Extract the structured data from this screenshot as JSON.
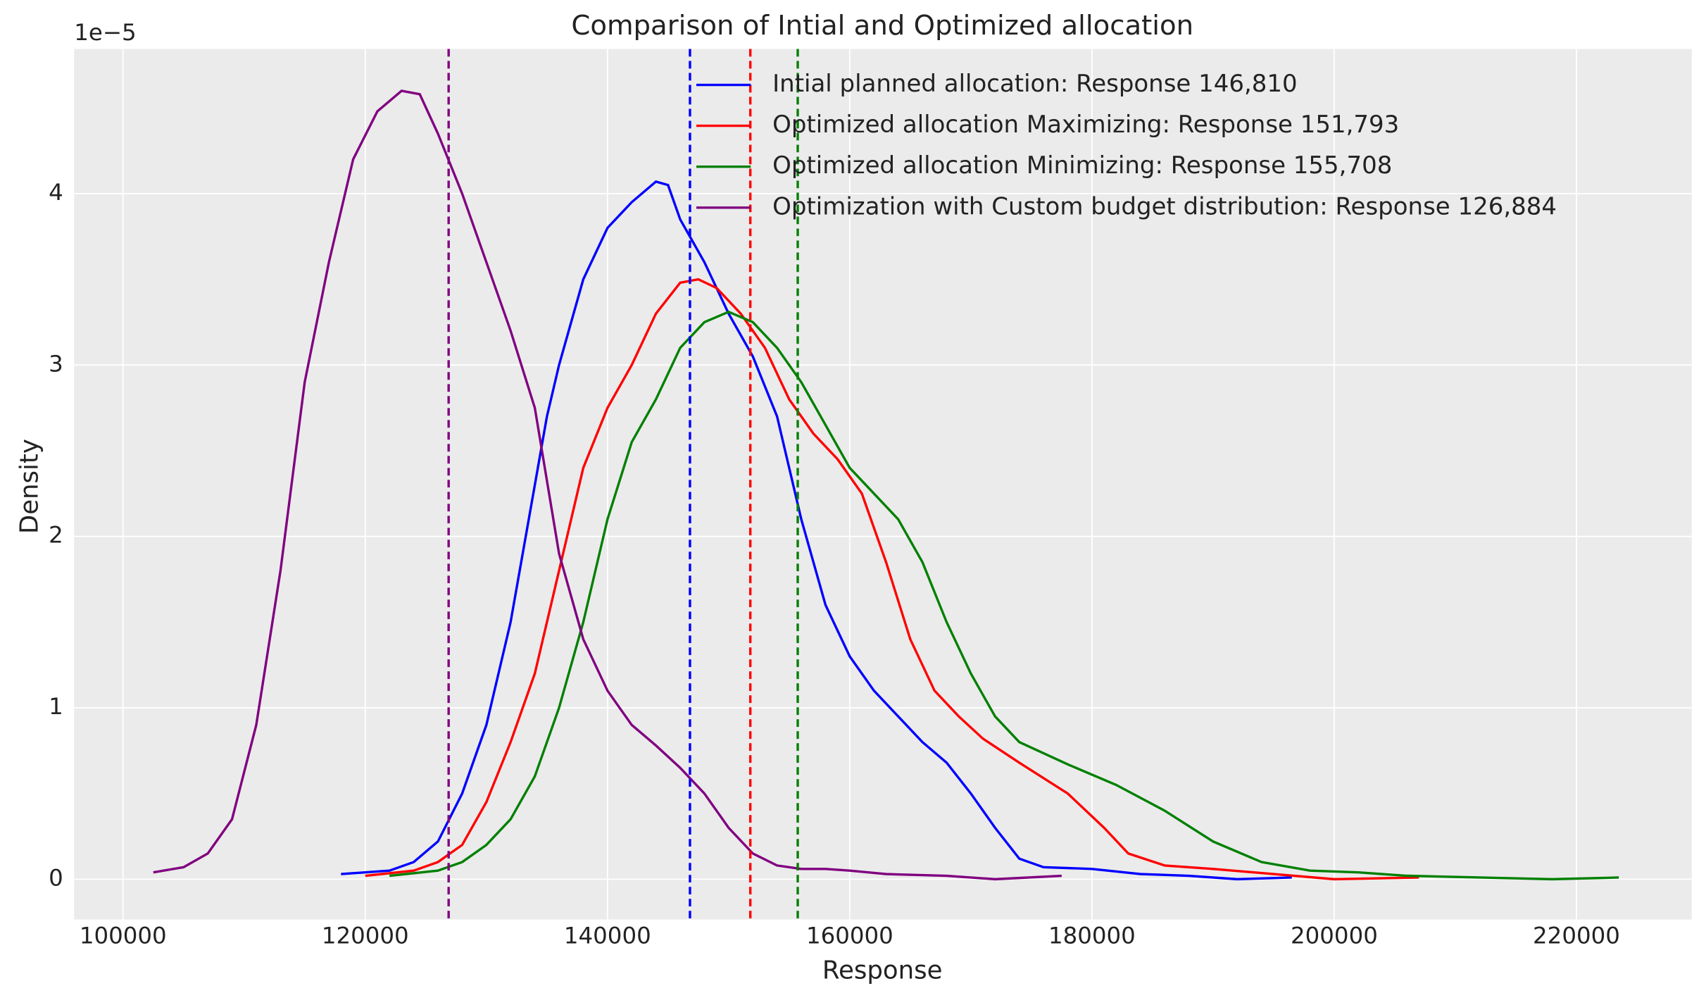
{
  "chart_data": {
    "type": "line",
    "title": "Comparison of Intial and Optimized allocation",
    "x_label": "Response",
    "y_label": "Density",
    "y_offset_label": "1e−5",
    "xlim": [
      95960,
      229520
    ],
    "ylim": [
      -0.235,
      4.844
    ],
    "xticks": [
      100000,
      120000,
      140000,
      160000,
      180000,
      200000,
      220000
    ],
    "yticks": [
      0,
      1,
      2,
      3,
      4
    ],
    "grid": true,
    "legend": "upper right",
    "series": [
      {
        "name": "Intial planned allocation: Response 146,810",
        "color": "#0000ff",
        "mean": 146810,
        "x": [
          118000,
          122000,
          124000,
          126000,
          128000,
          130000,
          132000,
          134000,
          135000,
          136000,
          138000,
          140000,
          142000,
          144000,
          145000,
          146000,
          148000,
          150000,
          152000,
          154000,
          156000,
          158000,
          160000,
          162000,
          164000,
          166000,
          168000,
          170000,
          172000,
          174000,
          176000,
          180000,
          184000,
          188000,
          192000,
          196500
        ],
        "values": [
          0.03,
          0.05,
          0.1,
          0.22,
          0.5,
          0.9,
          1.5,
          2.3,
          2.7,
          3.0,
          3.5,
          3.8,
          3.95,
          4.07,
          4.05,
          3.85,
          3.6,
          3.3,
          3.05,
          2.7,
          2.1,
          1.6,
          1.3,
          1.1,
          0.95,
          0.8,
          0.68,
          0.5,
          0.3,
          0.12,
          0.07,
          0.06,
          0.03,
          0.02,
          0.0,
          0.01
        ]
      },
      {
        "name": "Optimized allocation Maximizing: Response 151,793",
        "color": "#ff0000",
        "mean": 151793,
        "x": [
          120000,
          124000,
          126000,
          128000,
          130000,
          132000,
          134000,
          136000,
          138000,
          140000,
          142000,
          144000,
          146000,
          147500,
          149000,
          151000,
          153000,
          155000,
          157000,
          159000,
          161000,
          163000,
          165000,
          167000,
          169000,
          171000,
          174000,
          178000,
          181000,
          183000,
          186000,
          190000,
          195000,
          200000,
          207000
        ],
        "values": [
          0.02,
          0.05,
          0.1,
          0.2,
          0.45,
          0.8,
          1.2,
          1.8,
          2.4,
          2.75,
          3.0,
          3.3,
          3.48,
          3.5,
          3.45,
          3.3,
          3.1,
          2.8,
          2.6,
          2.45,
          2.25,
          1.85,
          1.4,
          1.1,
          0.95,
          0.82,
          0.68,
          0.5,
          0.3,
          0.15,
          0.08,
          0.06,
          0.03,
          0.0,
          0.01
        ]
      },
      {
        "name": "Optimized allocation Minimizing: Response 155,708",
        "color": "#008000",
        "mean": 155708,
        "x": [
          122000,
          126000,
          128000,
          130000,
          132000,
          134000,
          136000,
          138000,
          140000,
          142000,
          144000,
          146000,
          148000,
          150000,
          152000,
          154000,
          156000,
          158000,
          160000,
          162000,
          164000,
          166000,
          168000,
          170000,
          172000,
          174000,
          178000,
          182000,
          186000,
          190000,
          194000,
          198000,
          202000,
          206000,
          212000,
          218000,
          223500
        ],
        "values": [
          0.02,
          0.05,
          0.1,
          0.2,
          0.35,
          0.6,
          1.0,
          1.5,
          2.1,
          2.55,
          2.8,
          3.1,
          3.25,
          3.31,
          3.25,
          3.1,
          2.9,
          2.65,
          2.4,
          2.25,
          2.1,
          1.85,
          1.5,
          1.2,
          0.95,
          0.8,
          0.67,
          0.55,
          0.4,
          0.22,
          0.1,
          0.05,
          0.04,
          0.02,
          0.01,
          0.0,
          0.01
        ]
      },
      {
        "name": "Optimization with Custom budget distribution: Response 126,884",
        "color": "#800080",
        "mean": 126884,
        "x": [
          102500,
          105000,
          107000,
          109000,
          111000,
          113000,
          115000,
          117000,
          119000,
          121000,
          123000,
          124500,
          126000,
          128000,
          130000,
          132000,
          134000,
          136000,
          138000,
          140000,
          142000,
          144000,
          146000,
          148000,
          150000,
          152000,
          154000,
          156000,
          158000,
          160000,
          163000,
          168000,
          172000,
          177500
        ],
        "values": [
          0.04,
          0.07,
          0.15,
          0.35,
          0.9,
          1.8,
          2.9,
          3.6,
          4.2,
          4.48,
          4.6,
          4.58,
          4.35,
          4.0,
          3.6,
          3.2,
          2.75,
          1.9,
          1.4,
          1.1,
          0.9,
          0.78,
          0.65,
          0.5,
          0.3,
          0.15,
          0.08,
          0.06,
          0.06,
          0.05,
          0.03,
          0.02,
          0.0,
          0.02
        ]
      }
    ]
  }
}
